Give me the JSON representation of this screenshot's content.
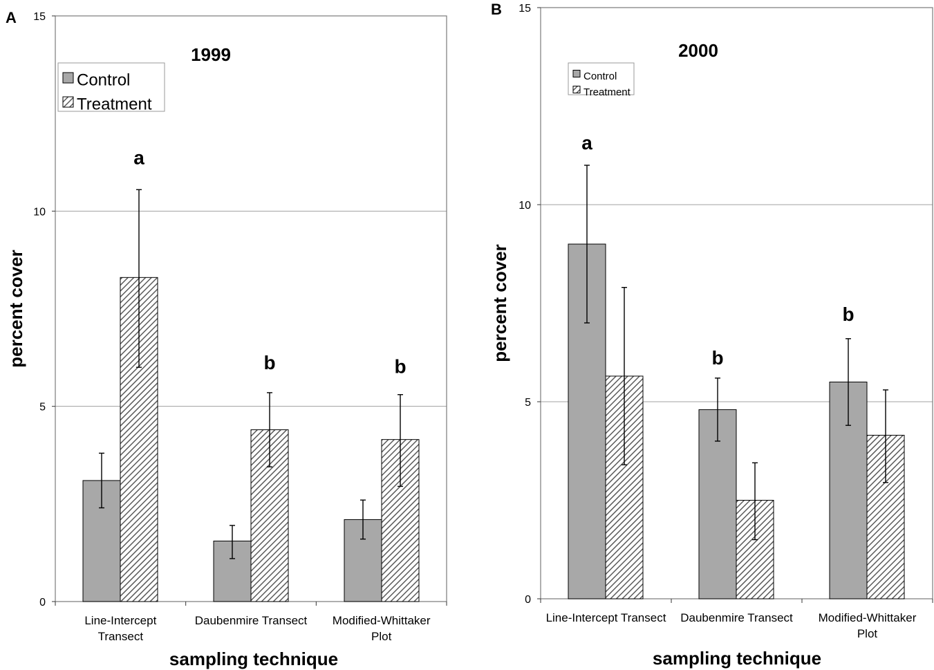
{
  "chart_data": [
    {
      "type": "bar",
      "panel": "A",
      "title": "1999",
      "xlabel": "sampling technique",
      "ylabel": "percent cover",
      "ylim": [
        0,
        15
      ],
      "yticks": [
        0,
        5,
        10,
        15
      ],
      "grid": true,
      "legend_position": "top-left",
      "categories": [
        [
          "Line-Intercept",
          "Transect"
        ],
        [
          "Daubenmire Transect"
        ],
        [
          "Modified-Whittaker",
          "Plot"
        ]
      ],
      "series": [
        {
          "name": "Control",
          "values": [
            3.1,
            1.55,
            2.1
          ],
          "err_low": [
            2.4,
            1.1,
            1.6
          ],
          "err_high": [
            3.8,
            1.95,
            2.6
          ]
        },
        {
          "name": "Treatment",
          "values": [
            8.3,
            4.4,
            4.15
          ],
          "err_low": [
            6.0,
            3.45,
            2.95
          ],
          "err_high": [
            10.55,
            5.35,
            5.3
          ]
        }
      ],
      "annotations": [
        {
          "text": "a",
          "category": 0,
          "series": 1,
          "y": 11.2
        },
        {
          "text": "b",
          "category": 1,
          "series": 1,
          "y": 5.95
        },
        {
          "text": "b",
          "category": 2,
          "series": 1,
          "y": 5.85
        }
      ]
    },
    {
      "type": "bar",
      "panel": "B",
      "title": "2000",
      "xlabel": "sampling technique",
      "ylabel": "percent cover",
      "ylim": [
        0,
        15
      ],
      "yticks": [
        0,
        5,
        10,
        15
      ],
      "grid": true,
      "legend_position": "top-left",
      "categories": [
        [
          "Line-Intercept Transect"
        ],
        [
          "Daubenmire Transect"
        ],
        [
          "Modified-Whittaker",
          "Plot"
        ]
      ],
      "series": [
        {
          "name": "Control",
          "values": [
            9.0,
            4.8,
            5.5
          ],
          "err_low": [
            7.0,
            4.0,
            4.4
          ],
          "err_high": [
            11.0,
            5.6,
            6.6
          ]
        },
        {
          "name": "Treatment",
          "values": [
            5.65,
            2.5,
            4.15
          ],
          "err_low": [
            3.4,
            1.5,
            2.95
          ],
          "err_high": [
            7.9,
            3.45,
            5.3
          ]
        }
      ],
      "annotations": [
        {
          "text": "a",
          "category": 0,
          "series": 0,
          "y": 11.4
        },
        {
          "text": "b",
          "category": 1,
          "series": 0,
          "y": 5.95
        },
        {
          "text": "b",
          "category": 2,
          "series": 0,
          "y": 7.05
        }
      ]
    }
  ],
  "colors": {
    "control_fill": "#a8a8a8",
    "treatment_hatch": "#5a5a5a",
    "gridline": "#a0a0a0",
    "frame": "#7a7a7a"
  }
}
